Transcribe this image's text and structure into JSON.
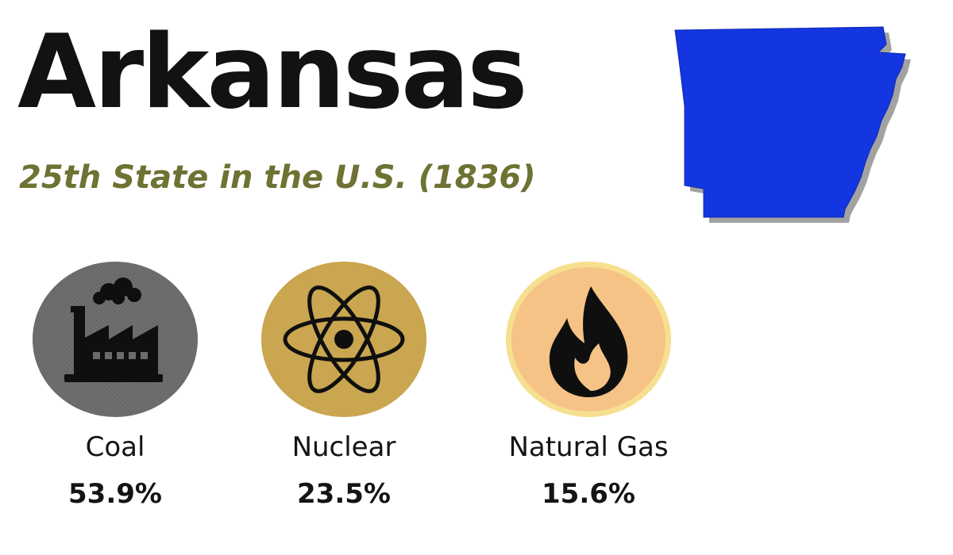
{
  "title": "Arkansas",
  "subtitle": "25th State in the U.S. (1836)",
  "map": {
    "icon": "arkansas-state-map",
    "fill_color": "#1436e0"
  },
  "sources": [
    {
      "label": "Coal",
      "percent": "53.9%",
      "icon": "factory-icon",
      "circle_color": "#6b6b6b"
    },
    {
      "label": "Nuclear",
      "percent": "23.5%",
      "icon": "atom-icon",
      "circle_color": "#c9a64f"
    },
    {
      "label": "Natural Gas",
      "percent": "15.6%",
      "icon": "flame-icon",
      "circle_color": "#f6c387"
    }
  ]
}
